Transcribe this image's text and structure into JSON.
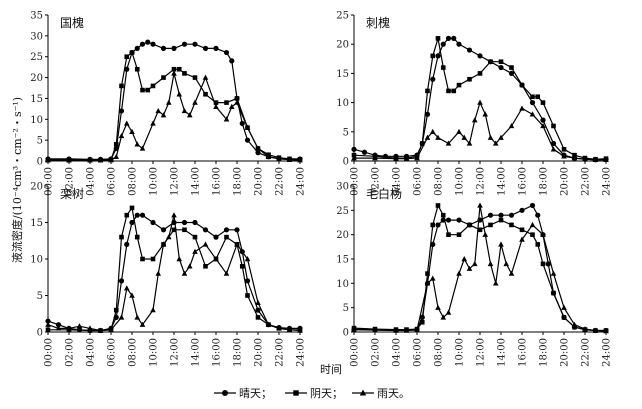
{
  "figure": {
    "ylabel": "液流密度/(10⁻⁴cm³・cm⁻²・s⁻¹)",
    "xlabel": "时间",
    "legend": [
      {
        "name": "晴天；",
        "marker": "circle"
      },
      {
        "name": "阴天；",
        "marker": "square"
      },
      {
        "name": "雨天。",
        "marker": "triangle"
      }
    ],
    "line_color": "#000000"
  },
  "chart_data": [
    {
      "type": "line",
      "title": "国槐",
      "ylim": [
        0,
        35
      ],
      "yticks": [
        0,
        5,
        10,
        15,
        20,
        25,
        30,
        35
      ],
      "xticks": [
        "00:00",
        "02:00",
        "04:00",
        "06:00",
        "08:00",
        "10:00",
        "12:00",
        "14:00",
        "16:00",
        "18:00",
        "20:00",
        "24:00"
      ],
      "xticks_full": [
        "00:00",
        "02:00",
        "04:00",
        "06:00",
        "08:00",
        "10:00",
        "12:00",
        "14:00",
        "16:00",
        "18:00",
        "20:00",
        "22:00",
        "24:00"
      ],
      "series": [
        {
          "name": "晴天",
          "marker": "circle",
          "x": [
            0,
            2,
            4,
            5,
            6,
            6.5,
            7,
            7.5,
            8,
            8.5,
            9,
            9.5,
            10,
            11,
            12,
            13,
            14,
            15,
            16,
            17,
            17.5,
            18,
            18.5,
            19,
            20,
            21,
            22,
            23,
            24
          ],
          "y": [
            0.5,
            0.5,
            0.4,
            0.4,
            0.5,
            3,
            12,
            22,
            26,
            27,
            28,
            28.5,
            28,
            27,
            27,
            28,
            28,
            27,
            27,
            26,
            24,
            15,
            9,
            5,
            2,
            1,
            0.6,
            0.5,
            0.5
          ]
        },
        {
          "name": "阴天",
          "marker": "square",
          "x": [
            0,
            2,
            4,
            5,
            6,
            6.5,
            7,
            7.5,
            8,
            8.5,
            9,
            9.5,
            10,
            11,
            12,
            12.5,
            13,
            14,
            15,
            16,
            17,
            18,
            19,
            20,
            21,
            22,
            23,
            24
          ],
          "y": [
            0.2,
            0.2,
            0.2,
            0.2,
            0.3,
            4,
            18,
            25,
            26,
            22,
            17,
            17,
            18,
            20,
            22,
            22,
            21,
            20,
            16,
            14,
            14,
            15,
            8,
            3,
            1.5,
            0.8,
            0.5,
            0.4
          ]
        },
        {
          "name": "雨天",
          "marker": "triangle",
          "x": [
            0,
            2,
            4,
            5,
            6,
            6.5,
            7,
            7.5,
            8,
            8.5,
            9,
            10,
            10.5,
            11,
            11.5,
            12,
            12.5,
            13,
            13.5,
            14,
            15,
            16,
            17,
            17.5,
            18,
            19,
            20,
            21,
            22,
            23,
            24
          ],
          "y": [
            0.2,
            0.2,
            0.2,
            0.2,
            0.2,
            1,
            6,
            9,
            7,
            4,
            3,
            9,
            12,
            11,
            14,
            21,
            16,
            12,
            11,
            14,
            20,
            13,
            10,
            13,
            14,
            8,
            3,
            1,
            0.5,
            0.3,
            0.2
          ]
        }
      ]
    },
    {
      "type": "line",
      "title": "刺槐",
      "ylim": [
        0,
        25
      ],
      "yticks": [
        0,
        5,
        10,
        15,
        20,
        25
      ],
      "xticks": [
        "00:00",
        "02:00",
        "04:00",
        "06:00",
        "08:00",
        "10:00",
        "12:00",
        "14:00",
        "16:00",
        "18:00",
        "20:00",
        "22:00",
        "24:00"
      ],
      "series": [
        {
          "name": "晴天",
          "marker": "circle",
          "x": [
            0,
            1,
            2,
            3,
            4,
            5,
            6,
            6.5,
            7,
            7.5,
            8,
            8.5,
            9,
            9.5,
            10,
            11,
            12,
            13,
            14,
            15,
            16,
            17,
            18,
            19,
            20,
            21,
            22,
            23,
            24
          ],
          "y": [
            2,
            1.5,
            1,
            0.8,
            0.8,
            0.8,
            1,
            3,
            8,
            14,
            18,
            20,
            21,
            21,
            20,
            19,
            18,
            17,
            16,
            15,
            13,
            10,
            7,
            3,
            1,
            0.5,
            0.3,
            0.2,
            0.3
          ]
        },
        {
          "name": "阴天",
          "marker": "square",
          "x": [
            0,
            2,
            4,
            5,
            6,
            6.5,
            7,
            7.5,
            8,
            8.5,
            9,
            9.5,
            10,
            11,
            12,
            13,
            14,
            15,
            16,
            17,
            17.5,
            18,
            19,
            20,
            21,
            22,
            23,
            24
          ],
          "y": [
            1,
            0.8,
            0.5,
            0.5,
            0.8,
            3,
            12,
            18,
            21,
            16,
            12,
            12,
            13,
            14,
            15,
            17,
            17,
            16,
            13,
            11,
            11,
            10,
            6,
            2,
            1,
            0.5,
            0.3,
            0.4
          ]
        },
        {
          "name": "雨天",
          "marker": "triangle",
          "x": [
            0,
            2,
            4,
            5,
            6,
            7,
            7.5,
            8,
            9,
            10,
            10.5,
            11,
            11.5,
            12,
            12.5,
            13,
            13.5,
            14,
            15,
            16,
            17,
            18,
            19,
            20,
            21,
            22,
            23,
            24
          ],
          "y": [
            0.5,
            0.5,
            0.4,
            0.4,
            0.5,
            4,
            5,
            4,
            3,
            5,
            4,
            3,
            7,
            10,
            8,
            4,
            3,
            4,
            6,
            9,
            8,
            6,
            2,
            0.8,
            0.5,
            0.3,
            0.2,
            0.2
          ]
        }
      ]
    },
    {
      "type": "line",
      "title": "栾树",
      "ylim": [
        0,
        20
      ],
      "yticks": [
        0,
        5,
        10,
        15,
        20
      ],
      "xticks": [
        "00:00",
        "02:00",
        "04:00",
        "06:00",
        "08:00",
        "10:00",
        "12:00",
        "14:00",
        "16:00",
        "18:00",
        "20:00",
        "22:00",
        "24:00"
      ],
      "series": [
        {
          "name": "晴天",
          "marker": "circle",
          "x": [
            0,
            1,
            2,
            3,
            4,
            5,
            6,
            6.5,
            7,
            7.5,
            8,
            8.5,
            9,
            10,
            11,
            12,
            13,
            14,
            15,
            16,
            17,
            18,
            18.5,
            19,
            20,
            21,
            22,
            23,
            24
          ],
          "y": [
            1.5,
            1,
            0.5,
            0.3,
            0.2,
            0.2,
            0.5,
            2,
            7,
            12,
            15,
            16,
            16,
            15,
            14,
            15,
            15,
            15,
            14,
            13,
            14,
            14,
            11,
            7,
            3,
            1,
            0.6,
            0.5,
            0.5
          ]
        },
        {
          "name": "阴天",
          "marker": "square",
          "x": [
            0,
            2,
            4,
            5,
            6,
            6.5,
            7,
            7.5,
            8,
            8.5,
            9,
            10,
            11,
            12,
            13,
            14,
            15,
            16,
            17,
            18,
            18.5,
            19,
            20,
            21,
            22,
            23,
            24
          ],
          "y": [
            0.3,
            0.3,
            0.2,
            0.2,
            0.3,
            3,
            13,
            16,
            17,
            13,
            10,
            10,
            12,
            14,
            14,
            13,
            9,
            10,
            13,
            12,
            9,
            5,
            2,
            1,
            0.5,
            0.3,
            0.3
          ]
        },
        {
          "name": "雨天",
          "marker": "triangle",
          "x": [
            0,
            1,
            2,
            3,
            4,
            5,
            6,
            7,
            7.5,
            8,
            8.5,
            9,
            10,
            10.5,
            11,
            11.5,
            12,
            12.5,
            13,
            13.5,
            14,
            15,
            16,
            17,
            18,
            19,
            20,
            21,
            22,
            23,
            24
          ],
          "y": [
            1,
            0.5,
            0.5,
            0.8,
            0.5,
            0.2,
            0.3,
            2,
            6,
            5,
            2,
            1,
            3,
            8,
            12,
            13,
            16,
            10,
            8,
            9,
            11,
            12,
            10,
            8,
            12,
            10,
            4,
            1,
            0.5,
            0.3,
            0.2
          ]
        }
      ]
    },
    {
      "type": "line",
      "title": "毛白杨",
      "ylim": [
        0,
        30
      ],
      "yticks": [
        0,
        5,
        10,
        15,
        20,
        25,
        30
      ],
      "xticks": [
        "00:00",
        "02:00",
        "04:00",
        "06:00",
        "08:00",
        "10:00",
        "12:00",
        "14:00",
        "16:00",
        "18:00",
        "20:00",
        "22:00",
        "24:00"
      ],
      "series": [
        {
          "name": "晴天",
          "marker": "circle",
          "x": [
            0,
            2,
            4,
            5,
            6,
            6.5,
            7,
            7.5,
            8,
            8.5,
            9,
            10,
            11,
            12,
            13,
            14,
            15,
            16,
            17,
            17.5,
            18,
            18.5,
            19,
            20,
            21,
            22,
            23,
            24
          ],
          "y": [
            0.5,
            0.5,
            0.4,
            0.4,
            0.5,
            3,
            10,
            18,
            22,
            23,
            23,
            23,
            22,
            23,
            24,
            24,
            24,
            25,
            26,
            24,
            20,
            14,
            8,
            3,
            1,
            0.5,
            0.3,
            0.3
          ]
        },
        {
          "name": "阴天",
          "marker": "square",
          "x": [
            0,
            2,
            4,
            5,
            6,
            6.5,
            7,
            7.5,
            8,
            8.5,
            9,
            10,
            11,
            12,
            13,
            14,
            15,
            16,
            17,
            17.5,
            18,
            19,
            20,
            21,
            22,
            23,
            24
          ],
          "y": [
            0.8,
            0.6,
            0.5,
            0.5,
            0.6,
            2,
            12,
            22,
            26,
            24,
            20,
            20,
            22,
            21,
            22,
            23,
            22,
            21,
            20,
            18,
            14,
            8,
            3,
            1,
            0.5,
            0.3,
            0.3
          ]
        },
        {
          "name": "雨天",
          "marker": "triangle",
          "x": [
            0,
            2,
            4,
            5,
            6,
            7,
            7.5,
            8,
            8.5,
            9,
            10,
            10.5,
            11,
            11.5,
            12,
            12.5,
            13,
            13.5,
            14,
            14.5,
            15,
            16,
            17,
            18,
            19,
            20,
            21,
            22,
            23,
            24
          ],
          "y": [
            0.5,
            0.4,
            0.3,
            0.3,
            0.4,
            10,
            11,
            5,
            3,
            4,
            12,
            15,
            13,
            14,
            26,
            20,
            14,
            10,
            18,
            14,
            12,
            19,
            22,
            20,
            12,
            5,
            1.5,
            0.6,
            0.3,
            0.2
          ]
        }
      ]
    }
  ]
}
